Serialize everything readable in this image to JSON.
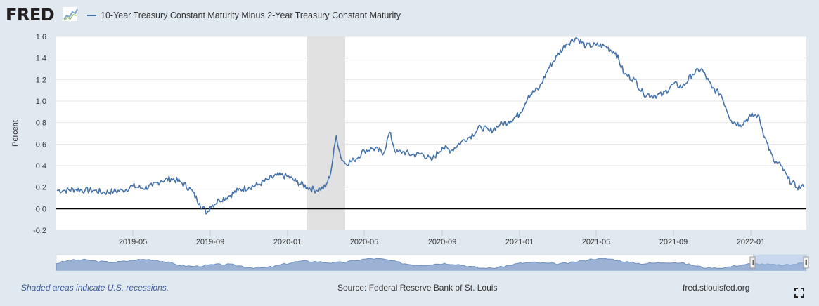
{
  "header": {
    "logo_text": "FRED",
    "series_title": "10-Year Treasury Constant Maturity Minus 2-Year Treasury Constant Maturity"
  },
  "footer": {
    "note": "Shaded areas indicate U.S. recessions.",
    "source": "Source: Federal Reserve Bank of St. Louis",
    "site": "fred.stlouisfed.org"
  },
  "colors": {
    "series": "#4572a7",
    "recession": "#e1e1e1",
    "navigator_fill": "#8aa5cc"
  },
  "chart_data": {
    "type": "line",
    "title": "10-Year Treasury Constant Maturity Minus 2-Year Treasury Constant Maturity",
    "xlabel": "",
    "ylabel": "Percent",
    "ylim": [
      -0.2,
      1.6
    ],
    "yticks": [
      "1.6",
      "1.4",
      "1.2",
      "1.0",
      "0.8",
      "0.6",
      "0.4",
      "0.2",
      "0.0",
      "-0.2"
    ],
    "xticks": [
      "2019-05",
      "2019-09",
      "2020-01",
      "2020-05",
      "2020-09",
      "2021-01",
      "2021-05",
      "2021-09",
      "2022-01"
    ],
    "recession": {
      "start": "2020-02",
      "end": "2020-04"
    },
    "grid": true,
    "legend": "top-left",
    "series": [
      {
        "name": "10-Year Treasury Constant Maturity Minus 2-Year Treasury Constant Maturity",
        "x": [
          "2019-01-02",
          "2019-01-15",
          "2019-02-01",
          "2019-02-15",
          "2019-03-01",
          "2019-03-15",
          "2019-04-01",
          "2019-04-15",
          "2019-05-01",
          "2019-05-15",
          "2019-06-01",
          "2019-06-15",
          "2019-07-01",
          "2019-07-15",
          "2019-08-01",
          "2019-08-15",
          "2019-08-27",
          "2019-09-01",
          "2019-09-15",
          "2019-10-01",
          "2019-10-15",
          "2019-11-01",
          "2019-11-15",
          "2019-12-01",
          "2019-12-15",
          "2020-01-01",
          "2020-01-15",
          "2020-02-01",
          "2020-02-15",
          "2020-03-01",
          "2020-03-09",
          "2020-03-18",
          "2020-03-25",
          "2020-04-01",
          "2020-04-15",
          "2020-05-01",
          "2020-05-15",
          "2020-06-01",
          "2020-06-10",
          "2020-06-20",
          "2020-07-01",
          "2020-07-15",
          "2020-08-01",
          "2020-08-15",
          "2020-09-01",
          "2020-09-15",
          "2020-10-01",
          "2020-10-15",
          "2020-11-01",
          "2020-11-15",
          "2020-12-01",
          "2020-12-15",
          "2021-01-01",
          "2021-01-15",
          "2021-02-01",
          "2021-02-15",
          "2021-03-01",
          "2021-03-15",
          "2021-03-31",
          "2021-04-15",
          "2021-05-01",
          "2021-05-15",
          "2021-06-01",
          "2021-06-15",
          "2021-07-01",
          "2021-07-15",
          "2021-08-01",
          "2021-08-15",
          "2021-09-01",
          "2021-09-15",
          "2021-10-01",
          "2021-10-15",
          "2021-11-01",
          "2021-11-15",
          "2021-12-01",
          "2021-12-15",
          "2022-01-01",
          "2022-01-15",
          "2022-02-01",
          "2022-02-15",
          "2022-03-01",
          "2022-03-15",
          "2022-04-01",
          "2022-04-15"
        ],
        "values": [
          0.17,
          0.17,
          0.18,
          0.17,
          0.17,
          0.15,
          0.16,
          0.17,
          0.21,
          0.19,
          0.21,
          0.26,
          0.28,
          0.25,
          0.18,
          0.05,
          -0.04,
          0.02,
          0.08,
          0.12,
          0.17,
          0.2,
          0.22,
          0.27,
          0.31,
          0.3,
          0.25,
          0.2,
          0.17,
          0.2,
          0.33,
          0.68,
          0.48,
          0.42,
          0.45,
          0.54,
          0.56,
          0.52,
          0.71,
          0.52,
          0.53,
          0.5,
          0.51,
          0.45,
          0.57,
          0.54,
          0.62,
          0.67,
          0.76,
          0.72,
          0.78,
          0.81,
          0.88,
          1.05,
          1.12,
          1.3,
          1.42,
          1.53,
          1.59,
          1.51,
          1.52,
          1.51,
          1.45,
          1.25,
          1.2,
          1.07,
          1.05,
          1.06,
          1.16,
          1.13,
          1.25,
          1.3,
          1.12,
          1.06,
          0.82,
          0.78,
          0.86,
          0.87,
          0.62,
          0.44,
          0.4,
          0.28,
          0.2,
          0.2
        ]
      }
    ]
  }
}
